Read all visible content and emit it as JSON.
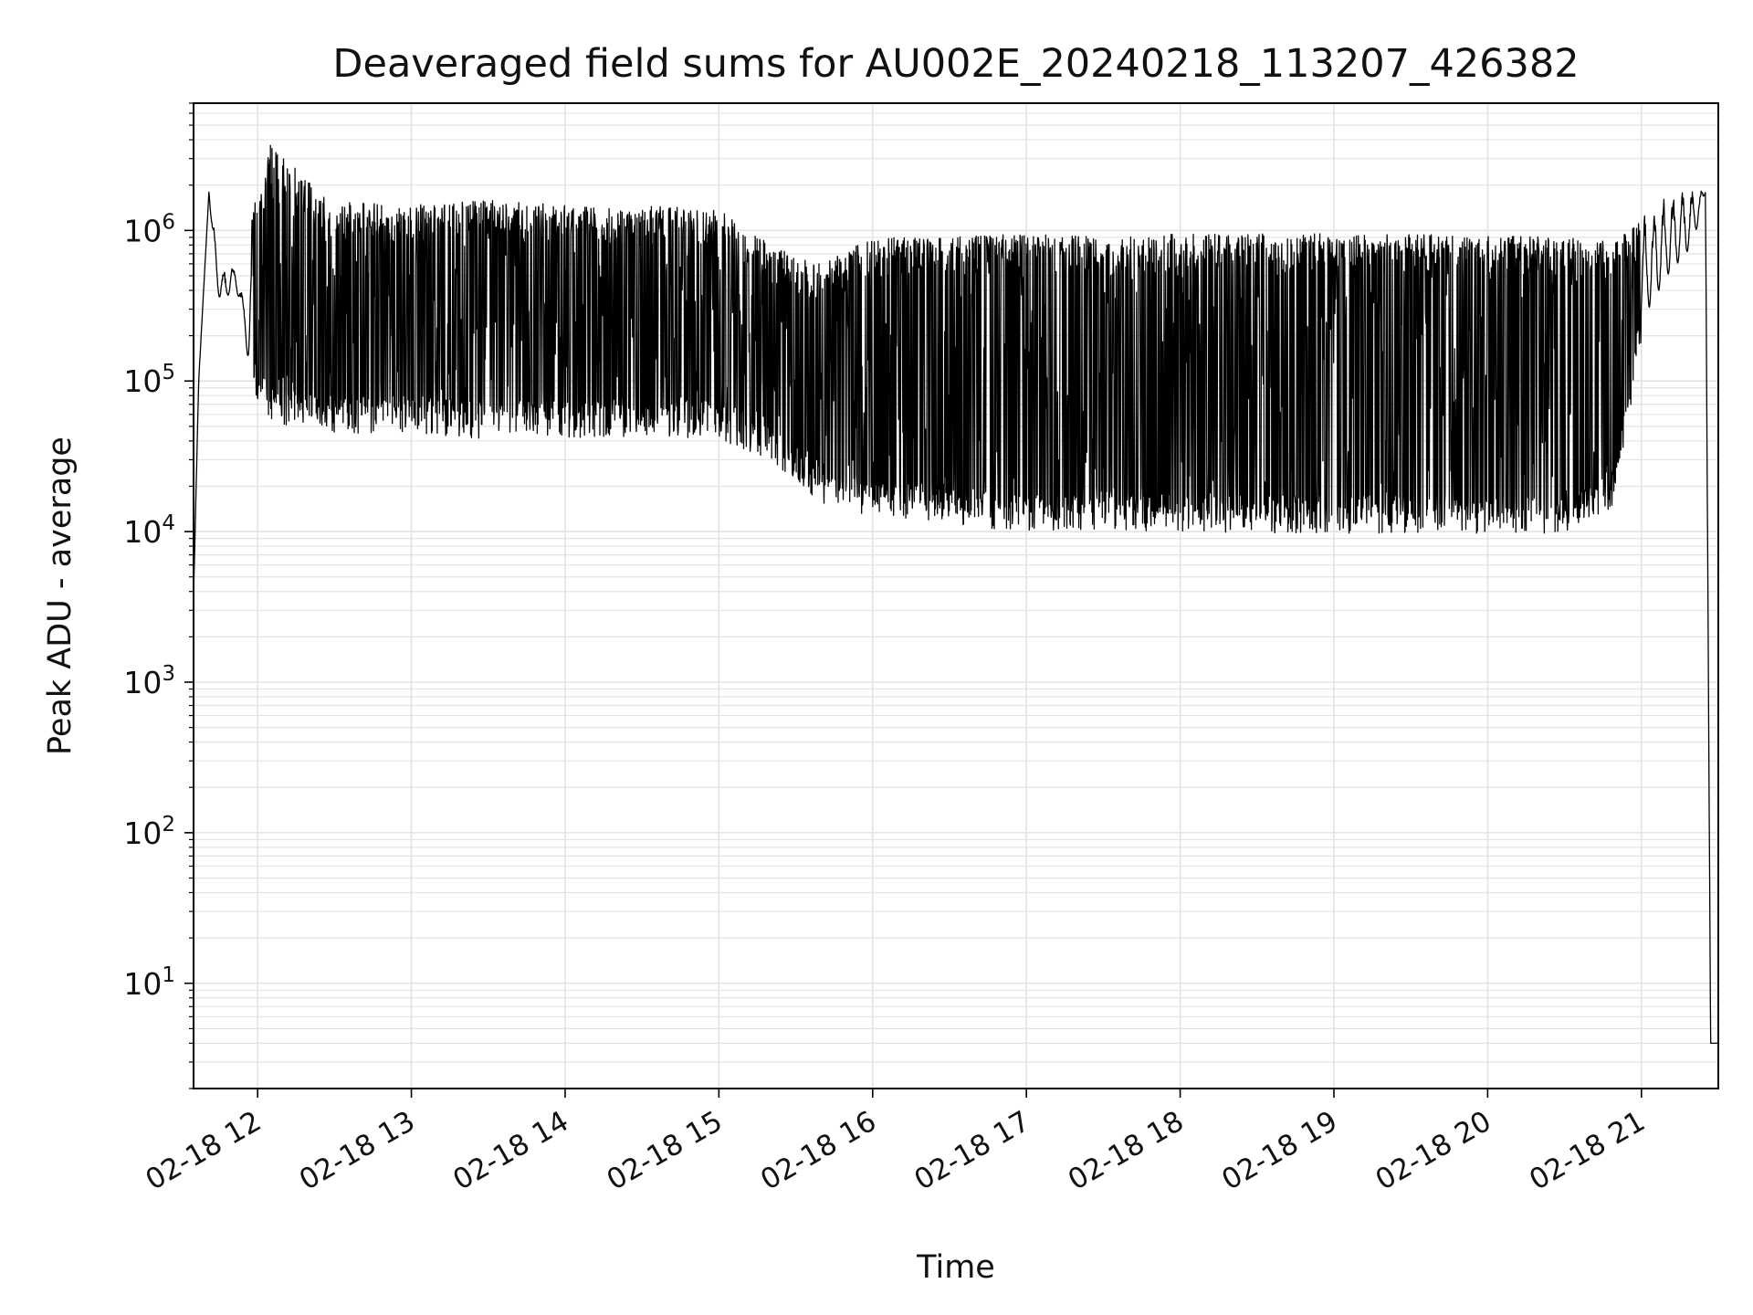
{
  "chart_data": {
    "type": "line",
    "title": "Deaveraged field sums for AU002E_20240218_113207_426382",
    "xlabel": "Time",
    "ylabel": "Peak ADU - average",
    "yscale": "log",
    "ylim": [
      2,
      7000000
    ],
    "xlim": [
      "2024-02-18T11:35",
      "2024-02-18T21:30"
    ],
    "grid": true,
    "grid_minor": true,
    "line_color": "#000000",
    "x_tick_labels": [
      "02-18 12",
      "02-18 13",
      "02-18 14",
      "02-18 15",
      "02-18 16",
      "02-18 17",
      "02-18 18",
      "02-18 19",
      "02-18 20",
      "02-18 21"
    ],
    "x_tick_values": [
      "2024-02-18T12:00",
      "2024-02-18T13:00",
      "2024-02-18T14:00",
      "2024-02-18T15:00",
      "2024-02-18T16:00",
      "2024-02-18T17:00",
      "2024-02-18T18:00",
      "2024-02-18T19:00",
      "2024-02-18T20:00",
      "2024-02-18T21:00"
    ],
    "y_tick_values": [
      10,
      100,
      1000,
      10000,
      100000,
      1000000
    ],
    "y_tick_labels": [
      {
        "base": "10",
        "exp": "1"
      },
      {
        "base": "10",
        "exp": "2"
      },
      {
        "base": "10",
        "exp": "3"
      },
      {
        "base": "10",
        "exp": "4"
      },
      {
        "base": "10",
        "exp": "5"
      },
      {
        "base": "10",
        "exp": "6"
      }
    ],
    "series": [
      {
        "x": [
          "2024-02-18T11:35",
          "2024-02-18T11:37",
          "2024-02-18T11:41",
          "2024-02-18T11:44",
          "2024-02-18T11:47",
          "2024-02-18T11:50",
          "2024-02-18T11:53",
          "2024-02-18T11:56",
          "2024-02-18T11:58",
          "2024-02-18T12:00",
          "2024-02-18T12:05",
          "2024-02-18T12:30",
          "2024-02-18T13:00",
          "2024-02-18T13:30",
          "2024-02-18T14:00",
          "2024-02-18T14:30",
          "2024-02-18T15:00",
          "2024-02-18T15:20",
          "2024-02-18T15:40",
          "2024-02-18T16:00",
          "2024-02-18T16:30",
          "2024-02-18T17:00",
          "2024-02-18T17:30",
          "2024-02-18T18:00",
          "2024-02-18T18:30",
          "2024-02-18T19:00",
          "2024-02-18T19:30",
          "2024-02-18T20:00",
          "2024-02-18T20:30",
          "2024-02-18T20:50",
          "2024-02-18T21:00",
          "2024-02-18T21:10",
          "2024-02-18T21:20",
          "2024-02-18T21:25",
          "2024-02-18T21:27",
          "2024-02-18T21:29"
        ],
        "upper": [
          3700,
          100000,
          1800000,
          800000,
          550000,
          600000,
          500000,
          230000,
          1600000,
          1500000,
          3700000,
          1550000,
          1500000,
          1600000,
          1500000,
          1450000,
          1400000,
          800000,
          600000,
          900000,
          900000,
          950000,
          900000,
          950000,
          950000,
          950000,
          950000,
          920000,
          900000,
          850000,
          1200000,
          1700000,
          1900000,
          1800000,
          4,
          4
        ],
        "lower": [
          3700,
          100000,
          1800000,
          400000,
          300000,
          450000,
          350000,
          150000,
          120000,
          90000,
          70000,
          60000,
          60000,
          55000,
          55000,
          55000,
          55000,
          40000,
          20000,
          17000,
          15000,
          13000,
          14000,
          13000,
          13000,
          13000,
          13000,
          13000,
          13000,
          20000,
          250000,
          500000,
          800000,
          1800000,
          4,
          4
        ]
      }
    ]
  }
}
